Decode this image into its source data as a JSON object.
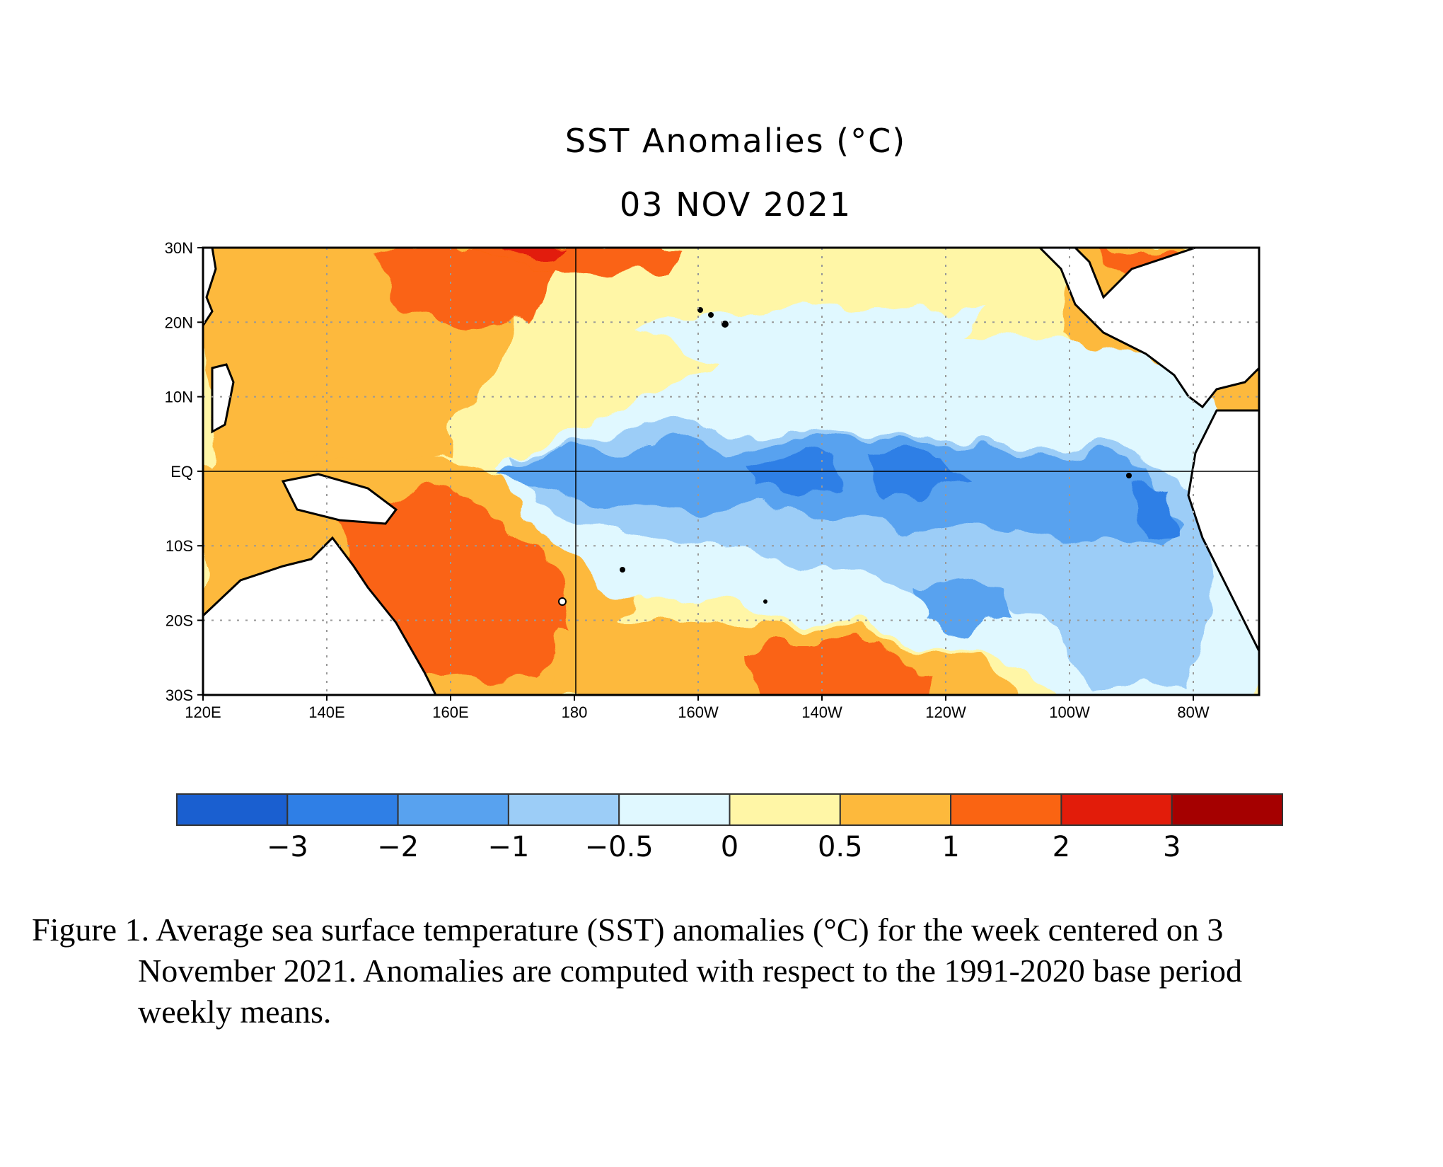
{
  "title": "SST Anomalies (°C)",
  "date": "03 NOV 2021",
  "lat_labels": [
    "30N",
    "20N",
    "10N",
    "EQ",
    "10S",
    "20S",
    "30S"
  ],
  "lon_labels": [
    "120E",
    "140E",
    "160E",
    "180",
    "160W",
    "140W",
    "120W",
    "100W",
    "80W"
  ],
  "colorbar": {
    "colors": [
      "#1a5fd0",
      "#2f7fe6",
      "#58a2ef",
      "#9ccdf7",
      "#e0f8ff",
      "#fff6a6",
      "#fdb93c",
      "#fa6412",
      "#e21c0a",
      "#a50000"
    ],
    "tick_labels": [
      "−3",
      "−2",
      "−1",
      "−0.5",
      "0",
      "0.5",
      "1",
      "2",
      "3"
    ]
  },
  "caption": {
    "line1": "Figure 1. Average sea surface temperature (SST) anomalies (°C) for the week centered on 3",
    "line2": "November 2021.  Anomalies are computed with respect to the 1991-2020 base period",
    "line3": "weekly means."
  }
}
